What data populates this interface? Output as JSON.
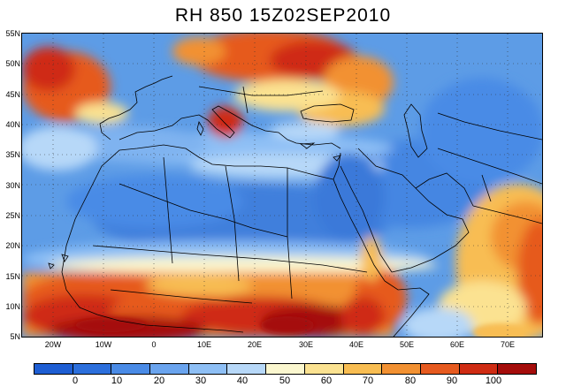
{
  "title": "RH 850 15Z02SEP2010",
  "map": {
    "lat_labels": [
      "55N",
      "50N",
      "45N",
      "40N",
      "35N",
      "30N",
      "25N",
      "20N",
      "15N",
      "10N",
      "5N"
    ],
    "lon_labels": [
      "20W",
      "10W",
      "0",
      "10E",
      "20E",
      "30E",
      "40E",
      "50E",
      "60E",
      "70E"
    ],
    "lat_range": [
      5,
      55
    ],
    "lon_range": [
      -26,
      76
    ]
  },
  "colorbar": {
    "colors": [
      "#1e5ed3",
      "#2c6fdc",
      "#4a8be6",
      "#6aa4ee",
      "#8ebff5",
      "#b7d8f8",
      "#fbf7cf",
      "#fbe291",
      "#f8bd52",
      "#f29132",
      "#e65a1f",
      "#cf2c13",
      "#a50d0b"
    ],
    "labels": [
      "0",
      "10",
      "20",
      "30",
      "40",
      "50",
      "60",
      "70",
      "80",
      "90",
      "100"
    ]
  }
}
